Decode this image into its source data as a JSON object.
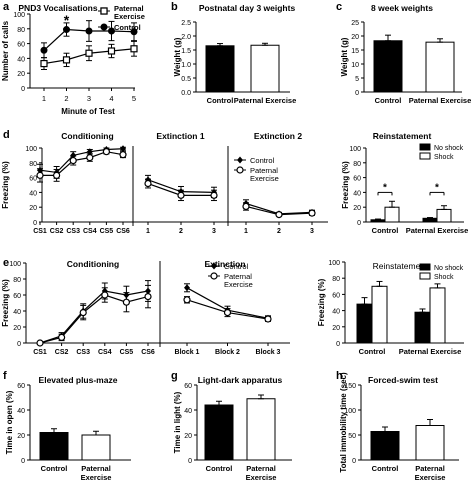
{
  "chart_data": [
    {
      "panel": "a",
      "type": "line",
      "title": "PND3 Vocalisations",
      "xlabel": "Minute of Test",
      "ylabel": "Number of calls",
      "x": [
        1,
        2,
        3,
        4,
        5
      ],
      "ylim": [
        0,
        100
      ],
      "yticks": [
        0,
        20,
        40,
        60,
        80,
        100
      ],
      "series": [
        {
          "name": "Paternal Exercise",
          "marker": "open-square",
          "values": [
            33,
            38,
            47,
            50,
            53
          ],
          "err": [
            8,
            9,
            10,
            9,
            10
          ]
        },
        {
          "name": "Control",
          "marker": "filled-circle",
          "values": [
            51,
            79,
            77,
            77,
            76
          ],
          "err": [
            10,
            9,
            14,
            13,
            12
          ]
        }
      ],
      "annotations": [
        {
          "text": "*",
          "x": 2
        }
      ]
    },
    {
      "panel": "b",
      "type": "bar",
      "title": "Postnatal day 3 weights",
      "xlabel": "",
      "ylabel": "Weight (g)",
      "categories": [
        "Control",
        "Paternal Exercise"
      ],
      "values": [
        1.65,
        1.67
      ],
      "err": [
        0.08,
        0.07
      ],
      "fills": [
        "#000000",
        "#ffffff"
      ],
      "ylim": [
        0,
        2.5
      ],
      "yticks": [
        "0.0",
        "0.5",
        "1.0",
        "1.5",
        "2.0",
        "2.5"
      ]
    },
    {
      "panel": "c",
      "type": "bar",
      "title": "8 week weights",
      "xlabel": "",
      "ylabel": "Weight (g)",
      "categories": [
        "Control",
        "Paternal Exercise"
      ],
      "values": [
        18.3,
        17.8
      ],
      "err": [
        2.0,
        1.2
      ],
      "fills": [
        "#000000",
        "#ffffff"
      ],
      "ylim": [
        0,
        25
      ],
      "yticks": [
        "0",
        "5",
        "10",
        "15",
        "20",
        "25"
      ]
    },
    {
      "panel": "d",
      "type": "line",
      "ylabel": "Freezing (%)",
      "ylim": [
        0,
        100
      ],
      "yticks": [
        0,
        20,
        40,
        60,
        80,
        100
      ],
      "segments": [
        {
          "title": "Conditioning",
          "x": [
            "CS1",
            "CS2",
            "CS3",
            "CS4",
            "CS5",
            "CS6"
          ],
          "series": [
            {
              "name": "Control",
              "marker": "filled-diamond",
              "values": [
                70,
                67,
                90,
                95,
                98,
                99
              ],
              "err": [
                8,
                8,
                5,
                3,
                2,
                2
              ]
            },
            {
              "name": "Paternal Exercise",
              "marker": "open-circle",
              "values": [
                63,
                63,
                83,
                87,
                95,
                91
              ],
              "err": [
                9,
                8,
                6,
                5,
                3,
                4
              ]
            }
          ]
        },
        {
          "title": "Extinction 1",
          "x": [
            "1",
            "2",
            "3"
          ],
          "series": [
            {
              "name": "Control",
              "marker": "filled-diamond",
              "values": [
                57,
                41,
                40
              ],
              "err": [
                6,
                7,
                7
              ]
            },
            {
              "name": "Paternal Exercise",
              "marker": "open-circle",
              "values": [
                52,
                36,
                36
              ],
              "err": [
                6,
                7,
                7
              ]
            }
          ]
        },
        {
          "title": "Extinction 2",
          "x": [
            "1",
            "2",
            "3"
          ],
          "series": [
            {
              "name": "Control",
              "marker": "filled-diamond",
              "values": [
                25,
                11,
                13
              ],
              "err": [
                5,
                2,
                3
              ]
            },
            {
              "name": "Paternal Exercise",
              "marker": "open-circle",
              "values": [
                21,
                10,
                12
              ],
              "err": [
                5,
                2,
                3
              ]
            }
          ]
        }
      ],
      "legend": [
        "Control",
        "Paternal Exercise"
      ]
    },
    {
      "panel": "d2",
      "type": "bar",
      "title": "Reinstatement",
      "ylabel": "Freezing (%)",
      "categories": [
        "Control",
        "Paternal Exercise"
      ],
      "series": [
        {
          "name": "No shock",
          "values": [
            3,
            5
          ],
          "err": [
            1,
            1
          ]
        },
        {
          "name": "Shock",
          "values": [
            20,
            17
          ],
          "err": [
            8,
            5
          ]
        }
      ],
      "ylim": [
        0,
        100
      ],
      "yticks": [
        0,
        20,
        40,
        60,
        80,
        100
      ],
      "annotations": [
        {
          "text": "*",
          "category": "Control"
        },
        {
          "text": "*",
          "category": "Paternal Exercise"
        }
      ]
    },
    {
      "panel": "e",
      "type": "line",
      "ylabel": "Freezing (%)",
      "ylim": [
        0,
        100
      ],
      "yticks": [
        0,
        20,
        40,
        60,
        80,
        100
      ],
      "segments": [
        {
          "title": "Conditioning",
          "x": [
            "CS1",
            "CS2",
            "CS3",
            "CS4",
            "CS5",
            "CS6"
          ],
          "series": [
            {
              "name": "Control",
              "marker": "filled-diamond",
              "values": [
                0,
                9,
                40,
                65,
                60,
                65
              ],
              "err": [
                0,
                4,
                9,
                10,
                11,
                13
              ]
            },
            {
              "name": "Paternal Exercise",
              "marker": "open-circle",
              "values": [
                0,
                7,
                38,
                60,
                51,
                58
              ],
              "err": [
                0,
                4,
                9,
                9,
                12,
                14
              ]
            }
          ]
        },
        {
          "title": "Extinction",
          "x": [
            "Block 1",
            "Block 2",
            "Block 3"
          ],
          "series": [
            {
              "name": "Control",
              "marker": "filled-diamond",
              "values": [
                69,
                41,
                31
              ],
              "err": [
                5,
                5,
                3
              ]
            },
            {
              "name": "Paternal Exercise",
              "marker": "open-circle",
              "values": [
                54,
                38,
                30
              ],
              "err": [
                4,
                5,
                3
              ]
            }
          ]
        }
      ],
      "legend": [
        "Control",
        "Paternal Exercise"
      ]
    },
    {
      "panel": "e2",
      "type": "bar",
      "title": "Reinstatement",
      "ylabel": "Freezing (%)",
      "categories": [
        "Control",
        "Paternal Exercise"
      ],
      "series": [
        {
          "name": "No shock",
          "values": [
            48,
            38
          ],
          "err": [
            8,
            4
          ]
        },
        {
          "name": "Shock",
          "values": [
            70,
            68
          ],
          "err": [
            6,
            5
          ]
        }
      ],
      "ylim": [
        0,
        100
      ],
      "yticks": [
        0,
        20,
        40,
        60,
        80,
        100
      ]
    },
    {
      "panel": "f",
      "type": "bar",
      "title": "Elevated plus-maze",
      "ylabel": "Time in open (%)",
      "categories": [
        "Control",
        "Paternal Exercise"
      ],
      "values": [
        22,
        20
      ],
      "err": [
        3,
        3
      ],
      "fills": [
        "#000000",
        "#ffffff"
      ],
      "ylim": [
        0,
        60
      ],
      "yticks": [
        0,
        20,
        40,
        60
      ]
    },
    {
      "panel": "g",
      "type": "bar",
      "title": "Light-dark apparatus",
      "ylabel": "Time in light (%)",
      "categories": [
        "Control",
        "Paternal Exercise"
      ],
      "values": [
        44,
        49
      ],
      "err": [
        3,
        3
      ],
      "fills": [
        "#000000",
        "#ffffff"
      ],
      "ylim": [
        0,
        60
      ],
      "yticks": [
        0,
        20,
        40,
        60
      ]
    },
    {
      "panel": "h",
      "type": "bar",
      "title": "Forced-swim test",
      "ylabel": "Total immobility time (sec)",
      "categories": [
        "Control",
        "Paternal Exercise"
      ],
      "values": [
        57,
        69
      ],
      "err": [
        9,
        12
      ],
      "fills": [
        "#000000",
        "#ffffff"
      ],
      "ylim": [
        0,
        150
      ],
      "yticks": [
        0,
        50,
        100,
        150
      ]
    }
  ]
}
